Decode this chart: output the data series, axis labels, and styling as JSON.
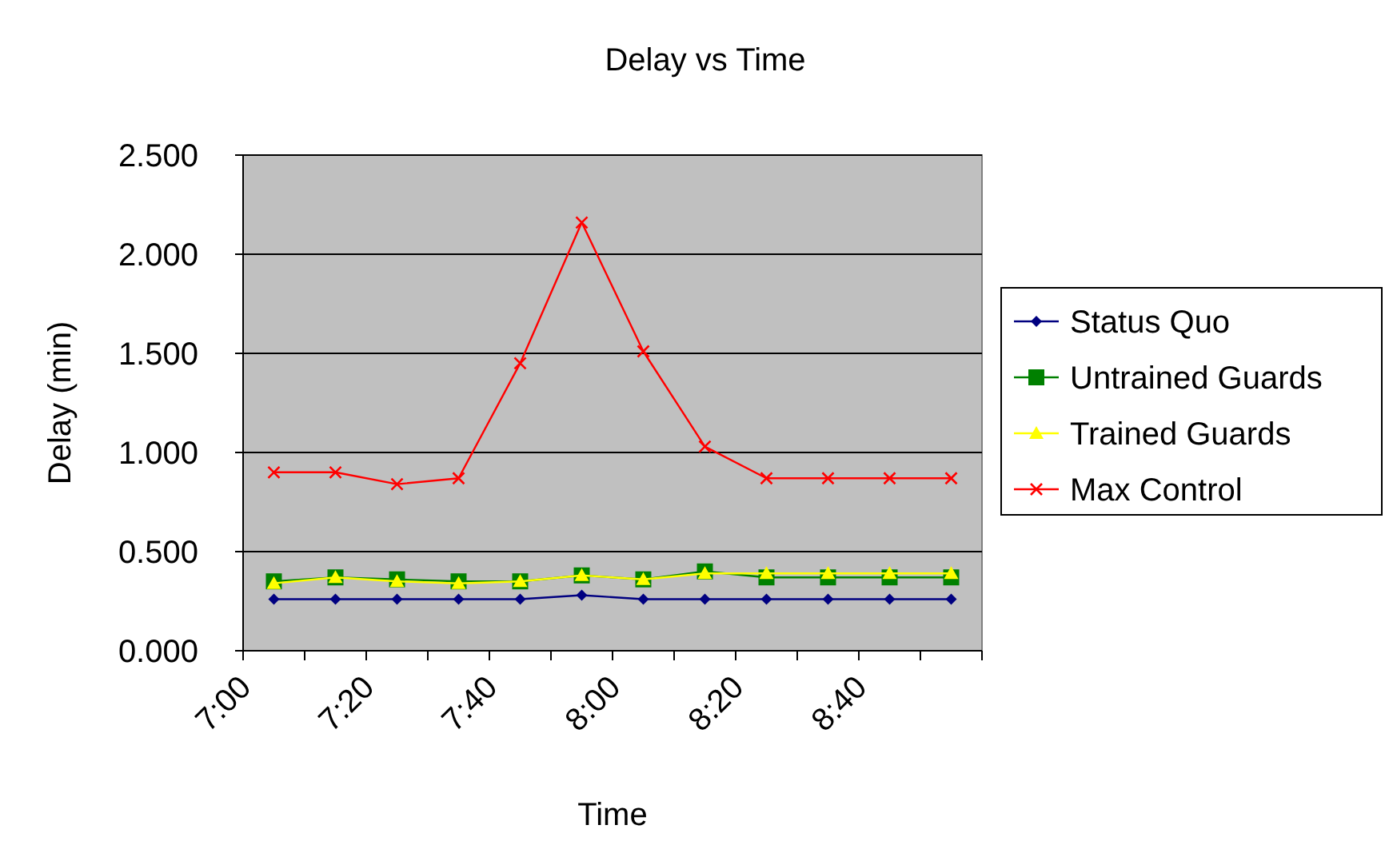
{
  "chart_data": {
    "type": "line",
    "title": "Delay vs Time",
    "xlabel": "Time",
    "ylabel": "Delay (min)",
    "x": [
      7.0833,
      7.25,
      7.4167,
      7.5833,
      7.75,
      7.9167,
      8.0833,
      8.25,
      8.4167,
      8.5833,
      8.75,
      8.9167
    ],
    "xlim": [
      7,
      9
    ],
    "xticks": [
      {
        "value": 7,
        "label": "7:00"
      },
      {
        "value": 7.1667,
        "label": null
      },
      {
        "value": 7.3333,
        "label": "7:20"
      },
      {
        "value": 7.5,
        "label": null
      },
      {
        "value": 7.6667,
        "label": "7:40"
      },
      {
        "value": 7.8333,
        "label": null
      },
      {
        "value": 8,
        "label": "8:00"
      },
      {
        "value": 8.1667,
        "label": null
      },
      {
        "value": 8.3333,
        "label": "8:20"
      },
      {
        "value": 8.5,
        "label": null
      },
      {
        "value": 8.6667,
        "label": "8:40"
      },
      {
        "value": 8.8333,
        "label": null
      },
      {
        "value": 9,
        "label": null
      }
    ],
    "ylim": [
      0,
      2.5
    ],
    "yticks": [
      {
        "value": 0,
        "label": "0.000"
      },
      {
        "value": 0.5,
        "label": "0.500"
      },
      {
        "value": 1,
        "label": "1.000"
      },
      {
        "value": 1.5,
        "label": "1.500"
      },
      {
        "value": 2,
        "label": "2.000"
      },
      {
        "value": 2.5,
        "label": "2.500"
      }
    ],
    "grid": "y",
    "legend": "right",
    "series": [
      {
        "name": "Status Quo",
        "color": "#000080",
        "marker": "diamond",
        "values": [
          0.26,
          0.26,
          0.26,
          0.26,
          0.26,
          0.28,
          0.26,
          0.26,
          0.26,
          0.26,
          0.26,
          0.26
        ]
      },
      {
        "name": "Untrained Guards",
        "color": "#008000",
        "marker": "square",
        "values": [
          0.35,
          0.37,
          0.36,
          0.35,
          0.35,
          0.38,
          0.36,
          0.4,
          0.37,
          0.37,
          0.37,
          0.37
        ]
      },
      {
        "name": "Trained Guards",
        "color": "#ffff00",
        "marker": "triangle",
        "values": [
          0.34,
          0.37,
          0.35,
          0.34,
          0.35,
          0.38,
          0.36,
          0.39,
          0.39,
          0.39,
          0.39,
          0.39
        ]
      },
      {
        "name": "Max Control",
        "color": "#ff0000",
        "marker": "cross",
        "values": [
          0.9,
          0.9,
          0.84,
          0.87,
          1.45,
          2.16,
          1.51,
          1.03,
          0.87,
          0.87,
          0.87,
          0.87
        ]
      }
    ]
  }
}
